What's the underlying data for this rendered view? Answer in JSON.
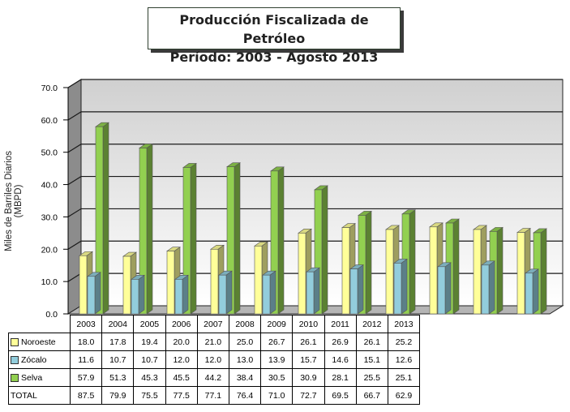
{
  "title_line1": "Producción Fiscalizada de Petróleo",
  "title_line2": "Período: 2003 -  Agosto 2013",
  "chart_data": {
    "type": "bar",
    "title": "Producción Fiscalizada de Petróleo Período: 2003 -  Agosto 2013",
    "ylabel": "Miles de Barriles Diarios (MBPD)",
    "ylim": [
      0,
      70
    ],
    "yticks": [
      "0.0",
      "10.0",
      "20.0",
      "30.0",
      "40.0",
      "50.0",
      "60.0",
      "70.0"
    ],
    "categories": [
      "2003",
      "2004",
      "2005",
      "2006",
      "2007",
      "2008",
      "2009",
      "2010",
      "2011",
      "2012",
      "2013"
    ],
    "series": [
      {
        "name": "Noroeste",
        "color": "#ffff99",
        "values": [
          18.0,
          17.8,
          19.4,
          20.0,
          21.0,
          25.0,
          26.7,
          26.1,
          26.9,
          26.1,
          25.2
        ]
      },
      {
        "name": "Zócalo",
        "color": "#92cddc",
        "values": [
          11.6,
          10.7,
          10.7,
          12.0,
          12.0,
          13.0,
          13.9,
          15.7,
          14.6,
          15.1,
          12.6
        ]
      },
      {
        "name": "Selva",
        "color": "#92d050",
        "values": [
          57.9,
          51.3,
          45.3,
          45.5,
          44.2,
          38.4,
          30.5,
          30.9,
          28.1,
          25.5,
          25.1
        ]
      }
    ],
    "total": {
      "name": "TOTAL",
      "values": [
        "87.5",
        "79.9",
        "75.5",
        "77.5",
        "77.1",
        "76.4",
        "71.0",
        "72.7",
        "69.5",
        "66.7",
        "62.9"
      ]
    },
    "table_values": {
      "Noroeste": [
        "18.0",
        "17.8",
        "19.4",
        "20.0",
        "21.0",
        "25.0",
        "26.7",
        "26.1",
        "26.9",
        "26.1",
        "25.2"
      ],
      "Zócalo": [
        "11.6",
        "10.7",
        "10.7",
        "12.0",
        "12.0",
        "13.0",
        "13.9",
        "15.7",
        "14.6",
        "15.1",
        "12.6"
      ],
      "Selva": [
        "57.9",
        "51.3",
        "45.3",
        "45.5",
        "44.2",
        "38.4",
        "30.5",
        "30.9",
        "28.1",
        "25.5",
        "25.1"
      ]
    },
    "grid": true
  }
}
